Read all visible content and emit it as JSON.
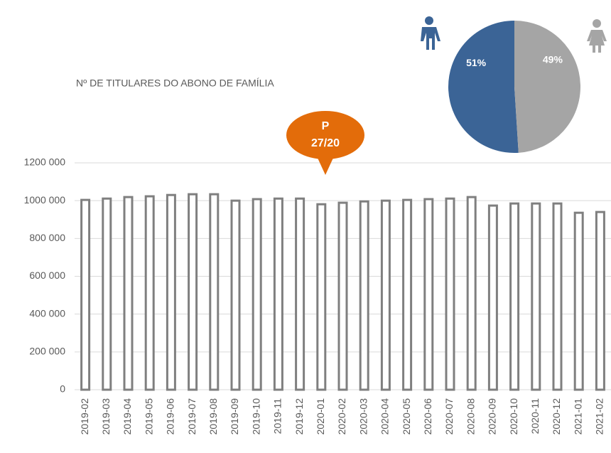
{
  "chart_data": [
    {
      "type": "bar",
      "title": "Nº DE TITULARES DO ABONO DE FAMÍLIA",
      "categories": [
        "2019-02",
        "2019-03",
        "2019-04",
        "2019-05",
        "2019-06",
        "2019-07",
        "2019-08",
        "2019-09",
        "2019-10",
        "2019-11",
        "2019-12",
        "2020-01",
        "2020-02",
        "2020-03",
        "2020-04",
        "2020-05",
        "2020-06",
        "2020-07",
        "2020-08",
        "2020-09",
        "2020-10",
        "2020-11",
        "2020-12",
        "2021-01",
        "2021-02"
      ],
      "values": [
        1004000,
        1011000,
        1019000,
        1023000,
        1030000,
        1034000,
        1034000,
        1000000,
        1008000,
        1011000,
        1011000,
        981000,
        989000,
        996000,
        1000000,
        1004000,
        1008000,
        1011000,
        1019000,
        974000,
        985000,
        985000,
        985000,
        936000,
        940000
      ],
      "color": "#7f7f7f",
      "ylim": [
        0,
        1200000
      ],
      "yticks": [
        0,
        {
          "value": 200000,
          "label": "200 000"
        },
        {
          "value": 400000,
          "label": "400 000"
        },
        {
          "value": 600000,
          "label": "600 000"
        },
        {
          "value": 800000,
          "label": "800 000"
        },
        {
          "value": 1000000,
          "label": "1000 000"
        },
        {
          "value": 1200000,
          "label": "1200 000"
        }
      ],
      "grid": true,
      "annotations": [
        "P",
        "27/20"
      ],
      "annotation_color": "#e36c0a"
    },
    {
      "type": "pie",
      "values": [
        51,
        49
      ],
      "value_labels": [
        "51%",
        "49%"
      ],
      "colors": [
        "#3b6496",
        "#a5a5a5"
      ]
    }
  ]
}
